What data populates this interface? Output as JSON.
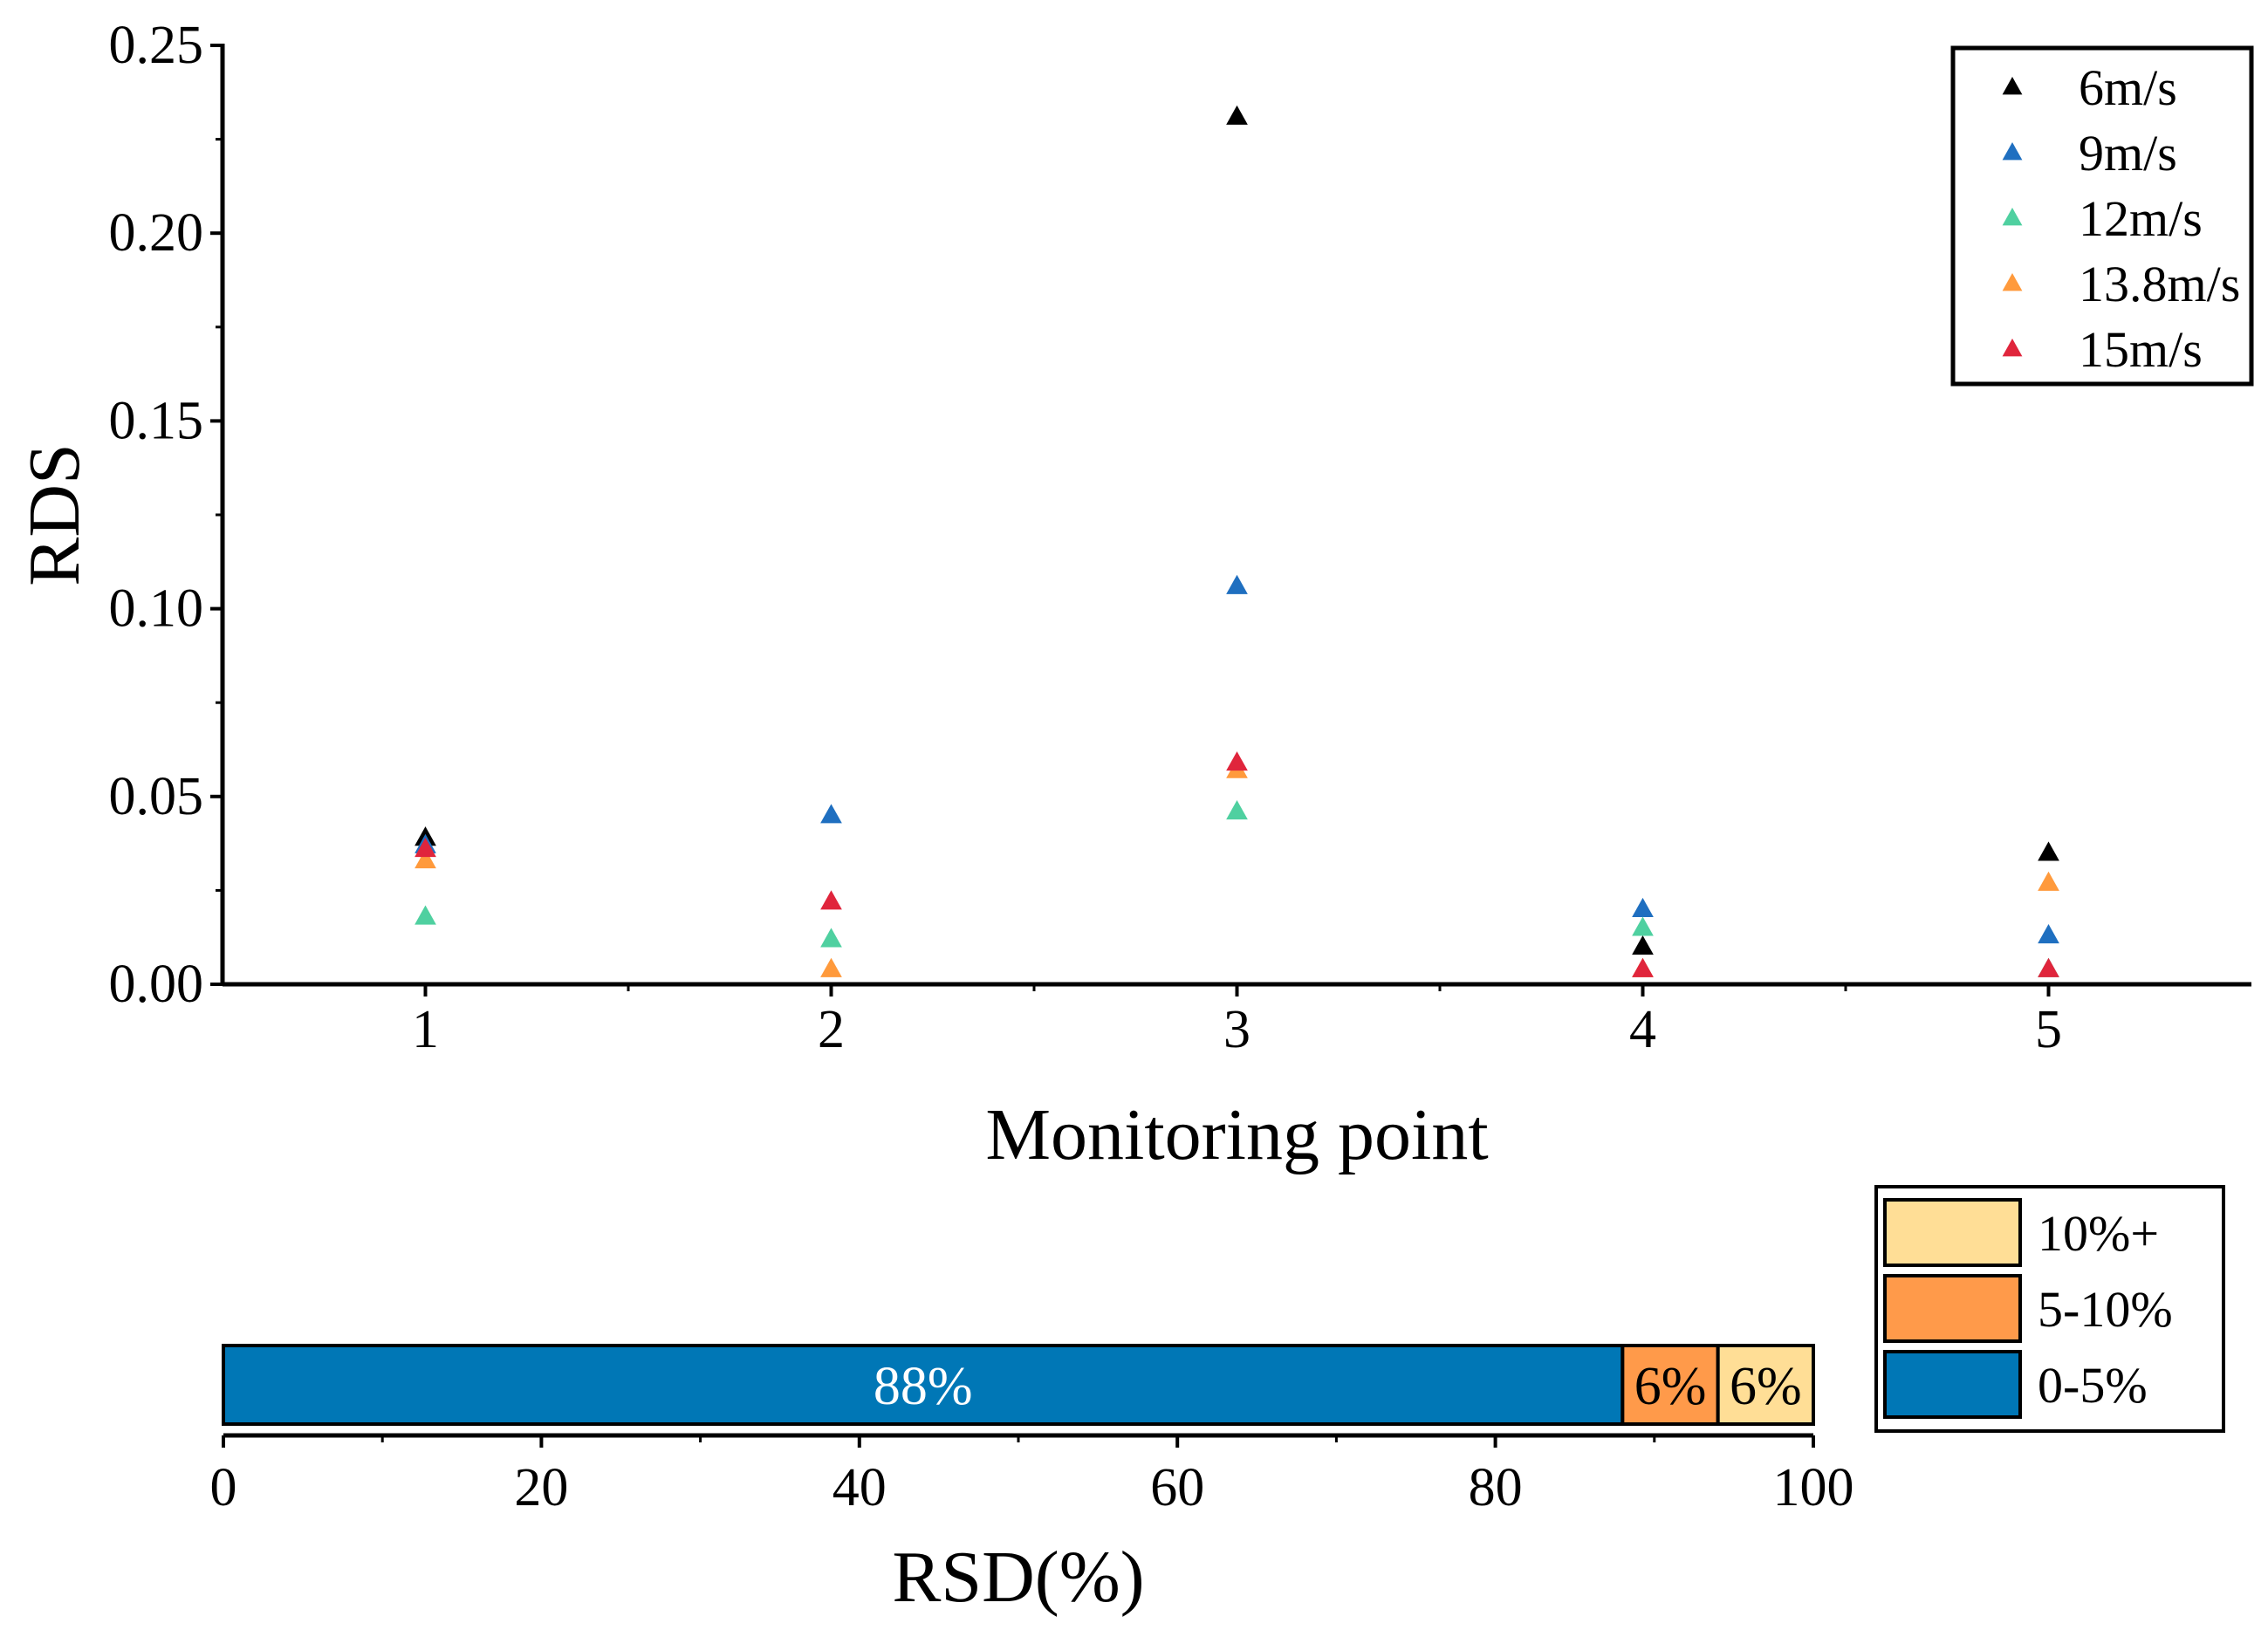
{
  "colors": {
    "6m/s": "#000000",
    "9m/s": "#1f6fc0",
    "12m/s": "#4fd0a0",
    "13.8m/s": "#ff9a3c",
    "15m/s": "#e0253c",
    "seg_0_5": "#0077b6",
    "seg_5_10": "#ff9a4a",
    "seg_10p": "#ffde96"
  },
  "chart_data": [
    {
      "type": "scatter",
      "title": "",
      "xlabel": "Monitoring point",
      "ylabel": "RDS",
      "categories": [
        "1",
        "2",
        "3",
        "4",
        "5"
      ],
      "xlim": [
        0.5,
        5.5
      ],
      "ylim": [
        0,
        0.25
      ],
      "y_ticks": [
        "0.00",
        "0.05",
        "0.10",
        "0.15",
        "0.20",
        "0.25"
      ],
      "x_ticks": [
        "1",
        "2",
        "3",
        "4",
        "5"
      ],
      "marker": "triangle",
      "legend_position": "top-right",
      "grid": false,
      "series": [
        {
          "name": "6m/s",
          "values": [
            0.039,
            null,
            0.231,
            0.01,
            0.035
          ]
        },
        {
          "name": "9m/s",
          "values": [
            0.037,
            0.045,
            0.106,
            0.02,
            0.013
          ]
        },
        {
          "name": "12m/s",
          "values": [
            0.018,
            0.012,
            0.046,
            0.015,
            0.004
          ]
        },
        {
          "name": "13.8m/s",
          "values": [
            0.033,
            0.004,
            0.057,
            0.004,
            0.027
          ]
        },
        {
          "name": "15m/s",
          "values": [
            0.036,
            0.022,
            0.059,
            0.004,
            0.004
          ]
        }
      ]
    },
    {
      "type": "bar",
      "orientation": "horizontal-stacked",
      "xlabel": "RSD(%)",
      "xlim": [
        0,
        100
      ],
      "x_ticks": [
        "0",
        "20",
        "40",
        "60",
        "80",
        "100"
      ],
      "legend_position": "right",
      "series": [
        {
          "name": "0-5%",
          "value": 88,
          "label": "88%"
        },
        {
          "name": "5-10%",
          "value": 6,
          "label": "6%"
        },
        {
          "name": "10%+",
          "value": 6,
          "label": "6%"
        }
      ],
      "legend_order": [
        "10%+",
        "5-10%",
        "0-5%"
      ]
    }
  ]
}
